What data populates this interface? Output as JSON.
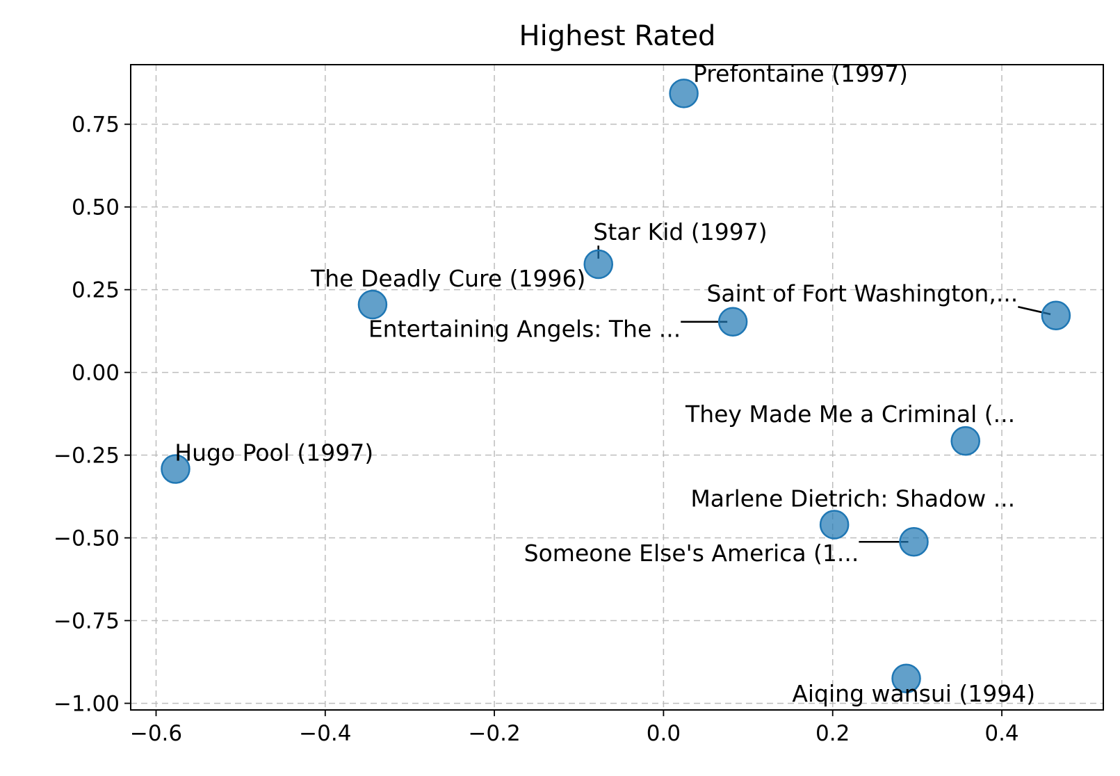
{
  "chart_data": {
    "type": "scatter",
    "title": "Highest Rated",
    "xlabel": "",
    "ylabel": "",
    "xlim": [
      -0.63,
      0.52
    ],
    "ylim": [
      -1.02,
      0.93
    ],
    "xticks": [
      -0.6,
      -0.4,
      -0.2,
      0.0,
      0.2,
      0.4
    ],
    "xtick_labels": [
      "−0.6",
      "−0.4",
      "−0.2",
      "0.0",
      "0.2",
      "0.4"
    ],
    "yticks": [
      0.75,
      0.5,
      0.25,
      0.0,
      -0.25,
      -0.5,
      -0.75,
      -1.0
    ],
    "ytick_labels": [
      "0.75",
      "0.50",
      "0.25",
      "0.00",
      "−0.25",
      "−0.50",
      "−0.75",
      "−1.00"
    ],
    "grid": true,
    "marker_color": "#1f77b4",
    "points": [
      {
        "label": "Prefontaine (1997)",
        "x": 0.024,
        "y": 0.843,
        "label_x": 0.035,
        "label_y": 0.878
      },
      {
        "label": "Star Kid (1997)",
        "x": -0.077,
        "y": 0.327,
        "label_x": -0.083,
        "label_y": 0.4
      },
      {
        "label": "The Deadly Cure (1996)",
        "x": -0.344,
        "y": 0.205,
        "label_x": -0.417,
        "label_y": 0.26
      },
      {
        "label": "Entertaining Angels: The ...",
        "x": 0.082,
        "y": 0.153,
        "label_x": -0.349,
        "label_y": 0.107
      },
      {
        "label": "Saint of Fort Washington,...",
        "x": 0.464,
        "y": 0.172,
        "label_x": 0.051,
        "label_y": 0.215
      },
      {
        "label": "They Made Me a Criminal (...",
        "x": 0.357,
        "y": -0.207,
        "label_x": 0.026,
        "label_y": -0.15
      },
      {
        "label": "Hugo Pool (1997)",
        "x": -0.577,
        "y": -0.292,
        "label_x": -0.578,
        "label_y": -0.267
      },
      {
        "label": "Marlene Dietrich: Shadow ...",
        "x": 0.202,
        "y": -0.46,
        "label_x": 0.032,
        "label_y": -0.405
      },
      {
        "label": "Someone Else's America (1...",
        "x": 0.296,
        "y": -0.512,
        "label_x": -0.165,
        "label_y": -0.57
      },
      {
        "label": "Aiqing wansui (1994)",
        "x": 0.287,
        "y": -0.925,
        "label_x": 0.152,
        "label_y": -0.995
      }
    ]
  }
}
